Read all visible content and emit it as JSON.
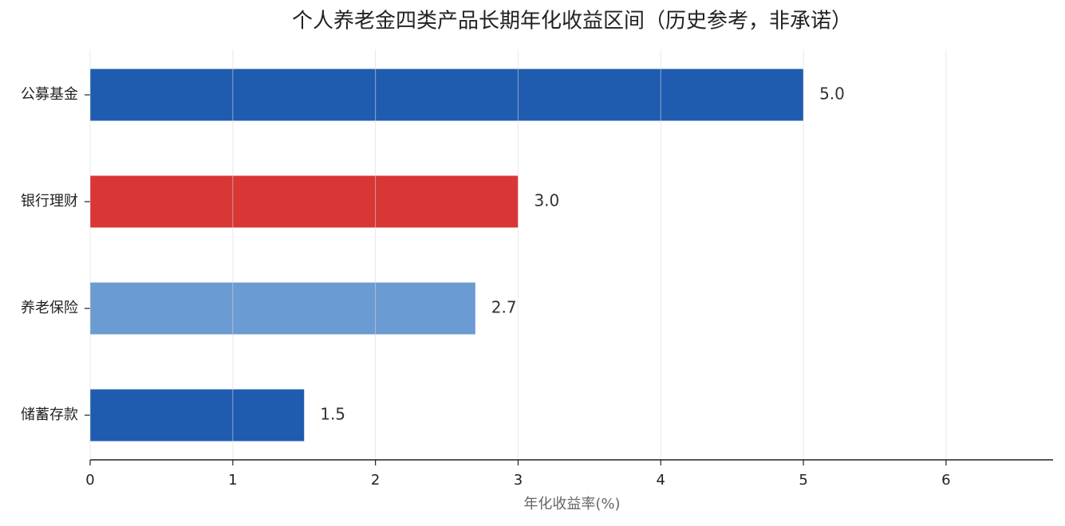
{
  "chart_data": {
    "type": "hbar",
    "title": "个人养老金四类产品长期年化收益区间（历史参考，非承诺）",
    "xlabel": "年化收益率(%)",
    "categories": [
      "公募基金",
      "银行理财",
      "养老保险",
      "储蓄存款"
    ],
    "values": [
      5,
      3,
      2.7,
      1.5
    ],
    "value_labels": [
      "5.0",
      "3.0",
      "2.7",
      "1.5"
    ],
    "colors": [
      "#1f5cb0",
      "#d93636",
      "#6b9bd3",
      "#1f5cb0"
    ],
    "xlim": [
      0,
      6.75
    ],
    "xticks": [
      0,
      1,
      2,
      3,
      4,
      5,
      6
    ],
    "grid": true
  }
}
